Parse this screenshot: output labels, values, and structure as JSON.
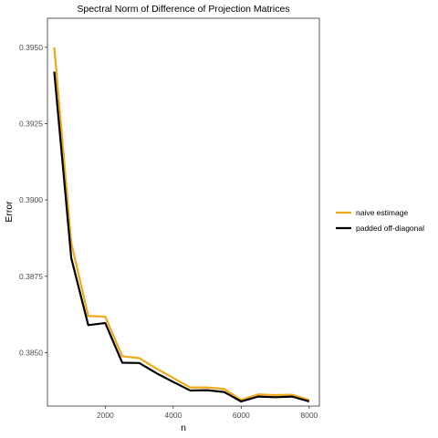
{
  "chart_data": {
    "type": "line",
    "title": "Spectral Norm of Difference of Projection Matrices",
    "xlabel": "n",
    "ylabel": "Error",
    "xlim": [
      300,
      8300
    ],
    "ylim": [
      0.38325,
      0.39595
    ],
    "x_ticks": [
      {
        "value": 2000,
        "label": "2000"
      },
      {
        "value": 4000,
        "label": "4000"
      },
      {
        "value": 6000,
        "label": "6000"
      },
      {
        "value": 8000,
        "label": "8000"
      }
    ],
    "y_ticks": [
      {
        "value": 0.385,
        "label": "0.3850"
      },
      {
        "value": 0.3875,
        "label": "0.3875"
      },
      {
        "value": 0.39,
        "label": "0.3900"
      },
      {
        "value": 0.3925,
        "label": "0.3925"
      },
      {
        "value": 0.395,
        "label": "0.3950"
      }
    ],
    "grid": false,
    "legend_position": "right",
    "x": [
      500,
      1000,
      1500,
      2000,
      2500,
      3000,
      3500,
      4000,
      4500,
      5000,
      5500,
      6000,
      6500,
      7000,
      7500,
      8000
    ],
    "series": [
      {
        "name": "naive estimage",
        "color": "#f0a818",
        "values": [
          0.395,
          0.3886,
          0.3862,
          0.38618,
          0.38488,
          0.38482,
          0.38448,
          0.38417,
          0.38386,
          0.38386,
          0.38381,
          0.38345,
          0.38363,
          0.38361,
          0.38362,
          0.38345
        ]
      },
      {
        "name": "padded off-diagonal",
        "color": "#000000",
        "values": [
          0.3942,
          0.3881,
          0.3859,
          0.38597,
          0.38467,
          0.38466,
          0.38433,
          0.38404,
          0.38376,
          0.38377,
          0.38371,
          0.3834,
          0.38356,
          0.38354,
          0.38356,
          0.3834
        ]
      }
    ]
  }
}
